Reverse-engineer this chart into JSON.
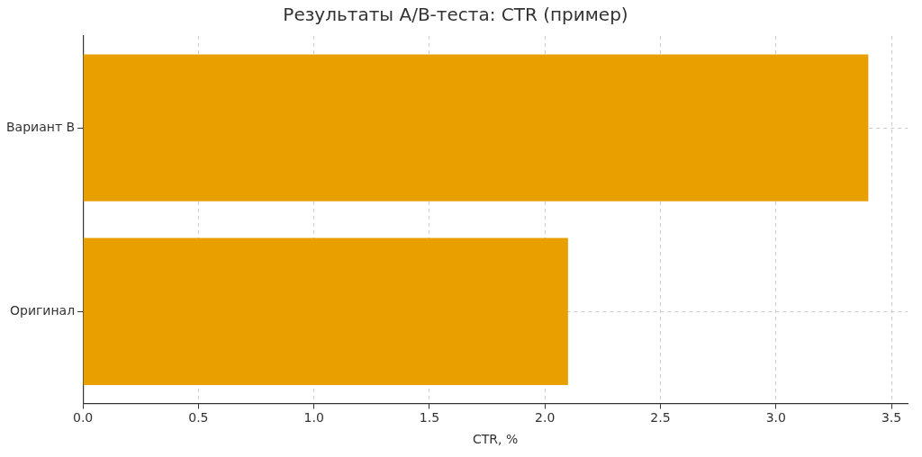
{
  "chart_data": {
    "type": "bar",
    "orientation": "horizontal",
    "title": "Результаты A/B-теста: CTR (пример)",
    "xlabel": "CTR, %",
    "categories": [
      "Вариант B",
      "Оригинал"
    ],
    "values": [
      3.4,
      2.1
    ],
    "color": "#e8a000",
    "xlim": [
      0,
      3.57
    ],
    "xticks": [
      {
        "value": 0,
        "label": "0.0"
      },
      {
        "value": 0.5,
        "label": "0.5"
      },
      {
        "value": 1,
        "label": "1.0"
      },
      {
        "value": 1.5,
        "label": "1.5"
      },
      {
        "value": 2,
        "label": "2.0"
      },
      {
        "value": 2.5,
        "label": "2.5"
      },
      {
        "value": 3,
        "label": "3.0"
      },
      {
        "value": 3.5,
        "label": "3.5"
      }
    ],
    "grid": true
  }
}
